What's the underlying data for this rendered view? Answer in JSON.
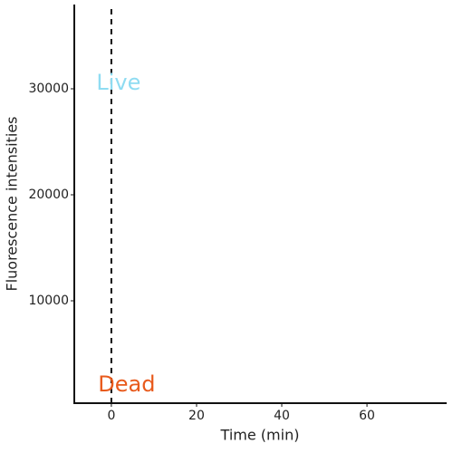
{
  "chart_data": {
    "type": "line",
    "x_label": "Time (min)",
    "y_label": "Fluorescence intensities",
    "series": [],
    "xlim": [
      -8.7,
      78.7
    ],
    "xticks": [
      0,
      20,
      40,
      60
    ],
    "ylim": [
      342,
      37950
    ],
    "yticks": [
      10000,
      20000,
      30000
    ],
    "vline": 0,
    "annotations": [
      {
        "text": "Live",
        "x": 1.7,
        "y": 30500,
        "color": "#8fdcf2"
      },
      {
        "text": "Dead",
        "x": 3.6,
        "y": 2050,
        "color": "#e85a1c"
      }
    ],
    "grid": false
  }
}
